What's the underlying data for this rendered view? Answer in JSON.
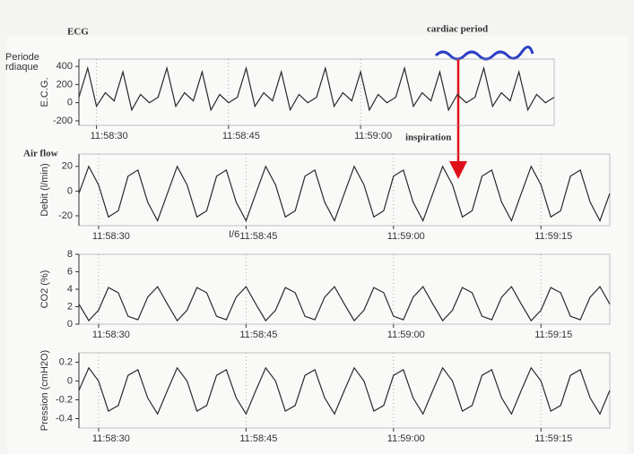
{
  "chart_data": [
    {
      "type": "line",
      "ylabel": "E.C.G.",
      "annotations": [
        "ECG",
        "cardiac period",
        "Periode",
        "rdiaque"
      ],
      "x": [
        "11:58:28",
        "11:58:29",
        "11:58:30",
        "11:58:31",
        "11:58:32",
        "11:58:33",
        "11:58:34",
        "11:58:35",
        "11:58:36",
        "11:58:37",
        "11:58:38",
        "11:58:39",
        "11:58:40",
        "11:58:41",
        "11:58:42",
        "11:58:43",
        "11:58:44",
        "11:58:45",
        "11:58:46",
        "11:58:47",
        "11:58:48",
        "11:58:49",
        "11:58:50",
        "11:58:51",
        "11:58:52",
        "11:58:53",
        "11:58:54",
        "11:58:55",
        "11:58:56",
        "11:58:57",
        "11:58:58",
        "11:58:59",
        "11:59:00",
        "11:59:01",
        "11:59:02",
        "11:59:03",
        "11:59:04",
        "11:59:05",
        "11:59:06",
        "11:59:07",
        "11:59:08",
        "11:59:09",
        "11:59:10",
        "11:59:11",
        "11:59:12",
        "11:59:13",
        "11:59:14",
        "11:59:15",
        "11:59:16",
        "11:59:17",
        "11:59:18",
        "11:59:19",
        "11:59:20",
        "11:59:21",
        "11:59:22"
      ],
      "series": [
        {
          "color": "#2a2a2a",
          "values": [
            60,
            380,
            -40,
            110,
            20,
            340,
            -80,
            90,
            0,
            60,
            380,
            -40,
            110,
            20,
            340,
            -80,
            90,
            0,
            60,
            380,
            -40,
            110,
            20,
            340,
            -80,
            90,
            0,
            60,
            380,
            -40,
            110,
            20,
            340,
            -80,
            90,
            0,
            60,
            380,
            -40,
            110,
            20,
            340,
            -80,
            90,
            0,
            60,
            380,
            -40,
            110,
            20,
            340,
            -80,
            90,
            0,
            60
          ]
        }
      ],
      "ylim": [
        -250,
        480
      ],
      "yticks": [
        -200,
        0,
        200,
        400
      ],
      "xticks": [
        "11:58:30",
        "11:58:45",
        "11:59:00"
      ]
    },
    {
      "type": "line",
      "ylabel": "Debit (l/min)",
      "annotations": [
        "Air flow",
        "inspiration",
        "I/6"
      ],
      "x": [
        "11:58:28",
        "11:58:29",
        "11:58:30",
        "11:58:31",
        "11:58:32",
        "11:58:33",
        "11:58:34",
        "11:58:35",
        "11:58:36",
        "11:58:37",
        "11:58:38",
        "11:58:39",
        "11:58:40",
        "11:58:41",
        "11:58:42",
        "11:58:43",
        "11:58:44",
        "11:58:45",
        "11:58:46",
        "11:58:47",
        "11:58:48",
        "11:58:49",
        "11:58:50",
        "11:58:51",
        "11:58:52",
        "11:58:53",
        "11:58:54",
        "11:58:55",
        "11:58:56",
        "11:58:57",
        "11:58:58",
        "11:58:59",
        "11:59:00",
        "11:59:01",
        "11:59:02",
        "11:59:03",
        "11:59:04",
        "11:59:05",
        "11:59:06",
        "11:59:07",
        "11:59:08",
        "11:59:09",
        "11:59:10",
        "11:59:11",
        "11:59:12",
        "11:59:13",
        "11:59:14",
        "11:59:15",
        "11:59:16",
        "11:59:17",
        "11:59:18",
        "11:59:19",
        "11:59:20",
        "11:59:21",
        "11:59:22"
      ],
      "series": [
        {
          "color": "#2a2a2a",
          "values": [
            -2,
            20,
            5,
            -21,
            -16,
            12,
            17,
            -9,
            -24,
            -2,
            20,
            5,
            -21,
            -16,
            12,
            17,
            -9,
            -24,
            -2,
            20,
            5,
            -21,
            -16,
            12,
            17,
            -9,
            -24,
            -2,
            20,
            5,
            -21,
            -16,
            12,
            17,
            -9,
            -24,
            -2,
            20,
            5,
            -21,
            -16,
            12,
            17,
            -9,
            -24,
            -2,
            20,
            5,
            -21,
            -16,
            12,
            17,
            -9,
            -24,
            -2
          ]
        }
      ],
      "ylim": [
        -28,
        30
      ],
      "yticks": [
        -20,
        0,
        20
      ],
      "xticks": [
        "11:58:30",
        "11:58:45",
        "11:59:00",
        "11:59:15"
      ]
    },
    {
      "type": "line",
      "ylabel": "CO2 (%)",
      "x": [
        "11:58:28",
        "11:58:29",
        "11:58:30",
        "11:58:31",
        "11:58:32",
        "11:58:33",
        "11:58:34",
        "11:58:35",
        "11:58:36",
        "11:58:37",
        "11:58:38",
        "11:58:39",
        "11:58:40",
        "11:58:41",
        "11:58:42",
        "11:58:43",
        "11:58:44",
        "11:58:45",
        "11:58:46",
        "11:58:47",
        "11:58:48",
        "11:58:49",
        "11:58:50",
        "11:58:51",
        "11:58:52",
        "11:58:53",
        "11:58:54",
        "11:58:55",
        "11:58:56",
        "11:58:57",
        "11:58:58",
        "11:58:59",
        "11:59:00",
        "11:59:01",
        "11:59:02",
        "11:59:03",
        "11:59:04",
        "11:59:05",
        "11:59:06",
        "11:59:07",
        "11:59:08",
        "11:59:09",
        "11:59:10",
        "11:59:11",
        "11:59:12",
        "11:59:13",
        "11:59:14",
        "11:59:15",
        "11:59:16",
        "11:59:17",
        "11:59:18",
        "11:59:19",
        "11:59:20",
        "11:59:21",
        "11:59:22"
      ],
      "series": [
        {
          "color": "#2a2a2a",
          "values": [
            2.3,
            0.4,
            1.6,
            4.2,
            3.6,
            0.9,
            0.5,
            3.1,
            4.3,
            2.3,
            0.4,
            1.6,
            4.2,
            3.6,
            0.9,
            0.5,
            3.1,
            4.3,
            2.3,
            0.4,
            1.6,
            4.2,
            3.6,
            0.9,
            0.5,
            3.1,
            4.3,
            2.3,
            0.4,
            1.6,
            4.2,
            3.6,
            0.9,
            0.5,
            3.1,
            4.3,
            2.3,
            0.4,
            1.6,
            4.2,
            3.6,
            0.9,
            0.5,
            3.1,
            4.3,
            2.3,
            0.4,
            1.6,
            4.2,
            3.6,
            0.9,
            0.5,
            3.1,
            4.3,
            2.3
          ]
        }
      ],
      "ylim": [
        0,
        8
      ],
      "yticks": [
        0,
        2,
        4,
        6,
        8
      ],
      "xticks": [
        "11:58:30",
        "11:58:45",
        "11:59:00",
        "11:59:15"
      ]
    },
    {
      "type": "line",
      "ylabel": "Pression (cmH2O)",
      "x": [
        "11:58:28",
        "11:58:29",
        "11:58:30",
        "11:58:31",
        "11:58:32",
        "11:58:33",
        "11:58:34",
        "11:58:35",
        "11:58:36",
        "11:58:37",
        "11:58:38",
        "11:58:39",
        "11:58:40",
        "11:58:41",
        "11:58:42",
        "11:58:43",
        "11:58:44",
        "11:58:45",
        "11:58:46",
        "11:58:47",
        "11:58:48",
        "11:58:49",
        "11:58:50",
        "11:58:51",
        "11:58:52",
        "11:58:53",
        "11:58:54",
        "11:58:55",
        "11:58:56",
        "11:58:57",
        "11:58:58",
        "11:58:59",
        "11:59:00",
        "11:59:01",
        "11:59:02",
        "11:59:03",
        "11:59:04",
        "11:59:05",
        "11:59:06",
        "11:59:07",
        "11:59:08",
        "11:59:09",
        "11:59:10",
        "11:59:11",
        "11:59:12",
        "11:59:13",
        "11:59:14",
        "11:59:15",
        "11:59:16",
        "11:59:17",
        "11:59:18",
        "11:59:19",
        "11:59:20",
        "11:59:21",
        "11:59:22"
      ],
      "series": [
        {
          "color": "#2a2a2a",
          "values": [
            -0.1,
            0.14,
            0.0,
            -0.32,
            -0.26,
            0.06,
            0.12,
            -0.18,
            -0.35,
            -0.1,
            0.14,
            0.0,
            -0.32,
            -0.26,
            0.06,
            0.12,
            -0.18,
            -0.35,
            -0.1,
            0.14,
            0.0,
            -0.32,
            -0.26,
            0.06,
            0.12,
            -0.18,
            -0.35,
            -0.1,
            0.14,
            0.0,
            -0.32,
            -0.26,
            0.06,
            0.12,
            -0.18,
            -0.35,
            -0.1,
            0.14,
            0.0,
            -0.32,
            -0.26,
            0.06,
            0.12,
            -0.18,
            -0.35,
            -0.1,
            0.14,
            0.0,
            -0.32,
            -0.26,
            0.06,
            0.12,
            -0.18,
            -0.35,
            -0.1
          ]
        }
      ],
      "ylim": [
        -0.5,
        0.3
      ],
      "yticks": [
        -0.4,
        -0.2,
        0,
        0.2
      ],
      "xticks": [
        "11:58:30",
        "11:58:45",
        "11:59:00",
        "11:59:15"
      ]
    }
  ]
}
